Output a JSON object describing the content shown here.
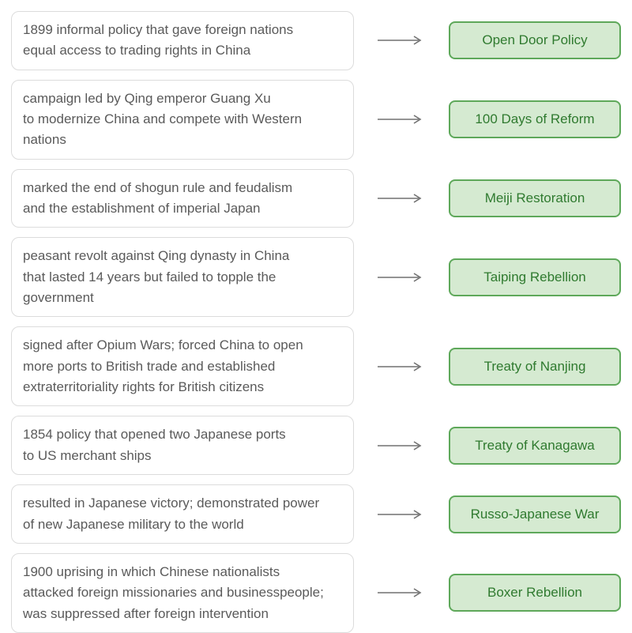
{
  "colors": {
    "desc_text": "#5a5a5a",
    "desc_bg": "#ffffff",
    "desc_border": "#dcdcdc",
    "arrow": "#717171",
    "ans_text": "#2f7a2f",
    "ans_bg": "#d5ead1",
    "ans_border": "#5ea85a"
  },
  "items": [
    {
      "desc": "1899 informal policy that gave foreign nations\nequal access to trading rights in China",
      "ans": "Open Door Policy"
    },
    {
      "desc": "campaign led by Qing emperor Guang Xu\nto modernize China and compete with Western nations",
      "ans": "100 Days of Reform"
    },
    {
      "desc": "marked the end of shogun rule and feudalism\nand the establishment of imperial Japan",
      "ans": "Meiji Restoration"
    },
    {
      "desc": "peasant revolt against Qing dynasty in China\nthat lasted 14 years but failed to topple the government",
      "ans": "Taiping Rebellion"
    },
    {
      "desc": "signed after Opium Wars; forced China to open\nmore ports to British trade and established\nextraterritoriality rights for  British citizens",
      "ans": "Treaty of Nanjing"
    },
    {
      "desc": "1854 policy that opened two Japanese ports\nto US merchant ships",
      "ans": "Treaty of Kanagawa"
    },
    {
      "desc": "resulted in Japanese victory; demonstrated power\nof new Japanese military to the world",
      "ans": "Russo-Japanese War"
    },
    {
      "desc": "1900 uprising in which Chinese nationalists\nattacked foreign missionaries and businesspeople;\nwas suppressed after foreign intervention",
      "ans": "Boxer Rebellion"
    }
  ]
}
